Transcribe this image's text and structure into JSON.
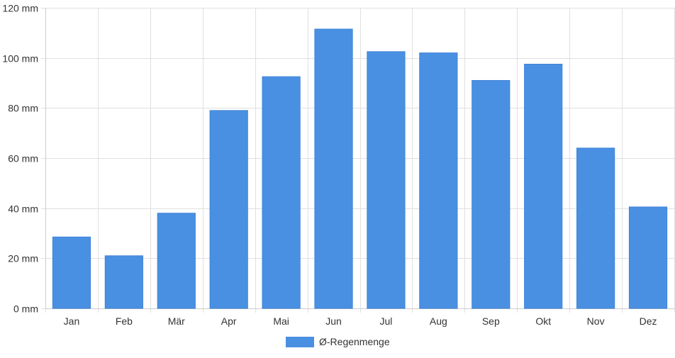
{
  "chart_data": {
    "type": "bar",
    "categories": [
      "Jan",
      "Feb",
      "Mär",
      "Apr",
      "Mai",
      "Jun",
      "Jul",
      "Aug",
      "Sep",
      "Okt",
      "Nov",
      "Dez"
    ],
    "series": [
      {
        "name": "Ø-Regenmenge",
        "values": [
          28.5,
          21,
          38,
          79,
          92.5,
          111.5,
          102.5,
          102,
          91,
          97.5,
          64,
          40.5
        ],
        "color": "#4a90e2"
      }
    ],
    "y_ticks": [
      0,
      20,
      40,
      60,
      80,
      100,
      120
    ],
    "y_unit": "mm",
    "ylim": [
      0,
      120
    ],
    "grid": true,
    "legend_position": "bottom-center",
    "title": "",
    "xlabel": "",
    "ylabel": ""
  }
}
